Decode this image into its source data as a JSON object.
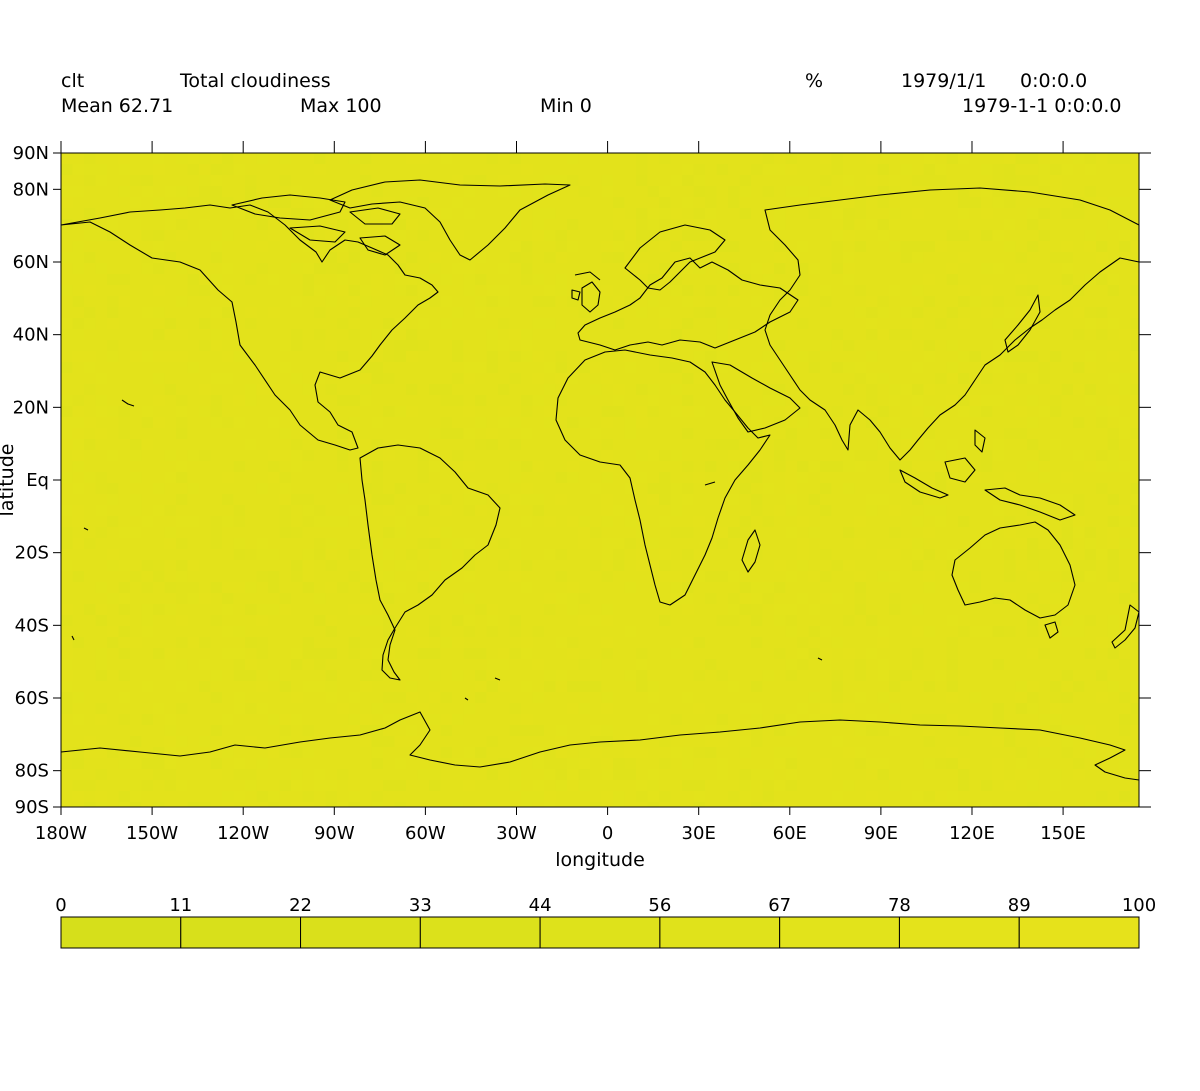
{
  "header": {
    "variable": "clt",
    "long_name": "Total cloudiness",
    "units": "%",
    "date": "1979/1/1",
    "time": "0:0:0.0",
    "datetime": "1979-1-1 0:0:0.0",
    "mean_label": "Mean 62.71",
    "max_label": "Max 100",
    "min_label": "Min 0"
  },
  "chart_data": {
    "type": "heatmap",
    "projection": "cylindrical equidistant",
    "lon_range": [
      -180,
      175
    ],
    "lat_range": [
      -90,
      90
    ],
    "xlabel": "longitude",
    "ylabel": "latitude",
    "x_ticks": [
      {
        "value": -180,
        "label": "180W"
      },
      {
        "value": -150,
        "label": "150W"
      },
      {
        "value": -120,
        "label": "120W"
      },
      {
        "value": -90,
        "label": "90W"
      },
      {
        "value": -60,
        "label": "60W"
      },
      {
        "value": -30,
        "label": "30W"
      },
      {
        "value": 0,
        "label": "0"
      },
      {
        "value": 30,
        "label": "30E"
      },
      {
        "value": 60,
        "label": "60E"
      },
      {
        "value": 90,
        "label": "90E"
      },
      {
        "value": 120,
        "label": "120E"
      },
      {
        "value": 150,
        "label": "150E"
      }
    ],
    "y_ticks": [
      {
        "value": 90,
        "label": "90N"
      },
      {
        "value": 80,
        "label": "80N"
      },
      {
        "value": 60,
        "label": "60N"
      },
      {
        "value": 40,
        "label": "40N"
      },
      {
        "value": 20,
        "label": "20N"
      },
      {
        "value": 0,
        "label": "Eq"
      },
      {
        "value": -20,
        "label": "20S"
      },
      {
        "value": -40,
        "label": "40S"
      },
      {
        "value": -60,
        "label": "60S"
      },
      {
        "value": -80,
        "label": "80S"
      },
      {
        "value": -90,
        "label": "90S"
      }
    ],
    "colorbar": {
      "labels": [
        "0",
        "11",
        "22",
        "33",
        "44",
        "56",
        "67",
        "78",
        "89",
        "100"
      ],
      "colors": [
        "#d6df1b",
        "#d8e01b",
        "#dae01b",
        "#dce11b",
        "#dee21b",
        "#e0e21b",
        "#e2e31b",
        "#e4e31b",
        "#e6e21b"
      ]
    },
    "field_color": "#e3e21b",
    "grid": false
  }
}
